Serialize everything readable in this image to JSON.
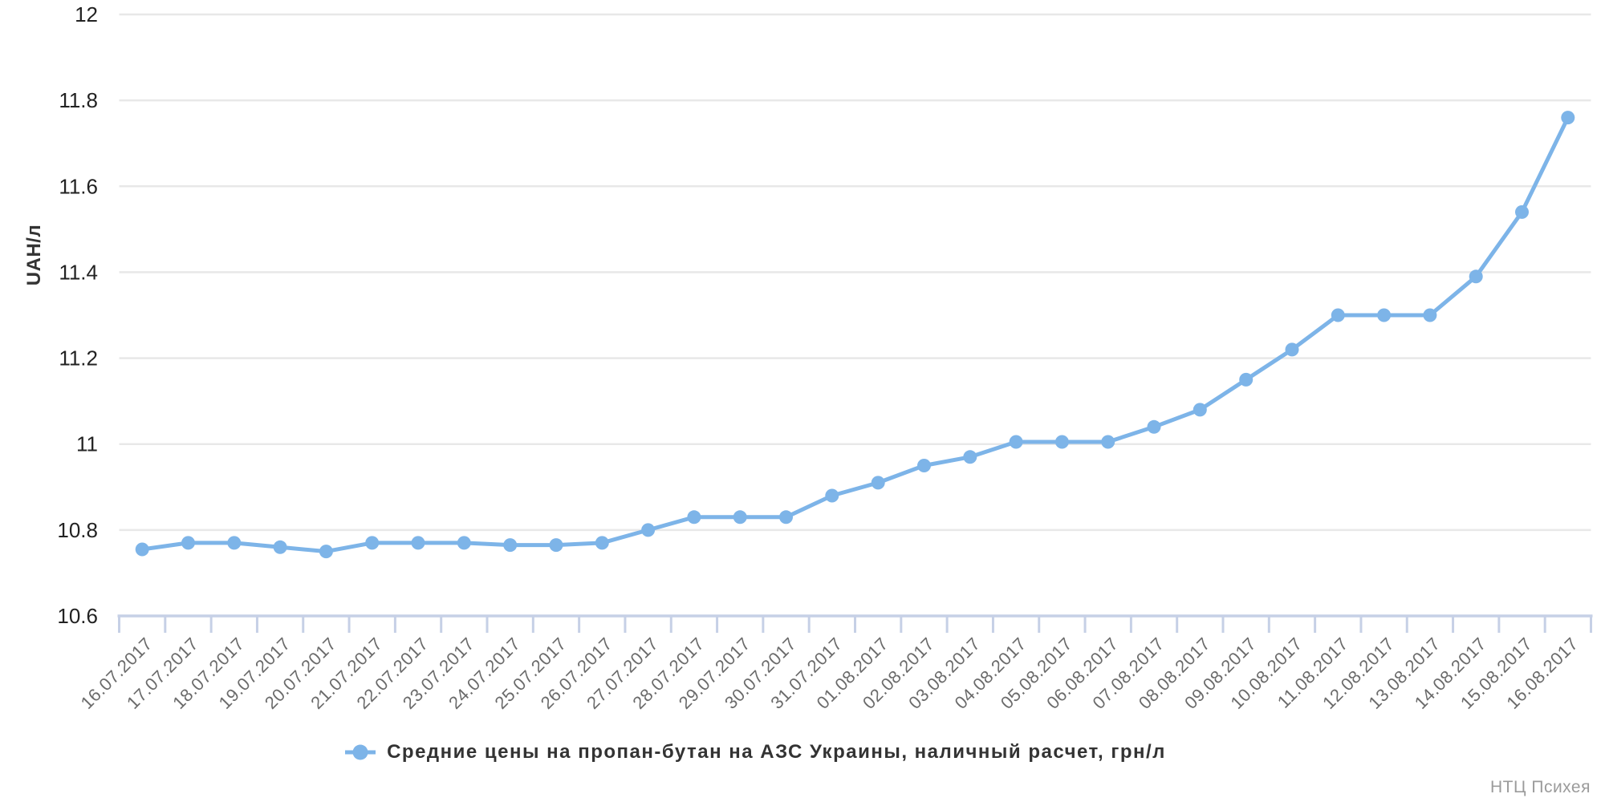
{
  "chart_data": {
    "type": "line",
    "x": [
      "16.07.2017",
      "17.07.2017",
      "18.07.2017",
      "19.07.2017",
      "20.07.2017",
      "21.07.2017",
      "22.07.2017",
      "23.07.2017",
      "24.07.2017",
      "25.07.2017",
      "26.07.2017",
      "27.07.2017",
      "28.07.2017",
      "29.07.2017",
      "30.07.2017",
      "31.07.2017",
      "01.08.2017",
      "02.08.2017",
      "03.08.2017",
      "04.08.2017",
      "05.08.2017",
      "06.08.2017",
      "07.08.2017",
      "08.08.2017",
      "09.08.2017",
      "10.08.2017",
      "11.08.2017",
      "12.08.2017",
      "13.08.2017",
      "14.08.2017",
      "15.08.2017",
      "16.08.2017"
    ],
    "series": [
      {
        "name": "Средние цены на пропан-бутан на АЗС Украины, наличный расчет, грн/л",
        "values": [
          10.755,
          10.77,
          10.77,
          10.76,
          10.75,
          10.77,
          10.77,
          10.77,
          10.765,
          10.765,
          10.77,
          10.8,
          10.83,
          10.83,
          10.83,
          10.88,
          10.91,
          10.95,
          10.97,
          11.005,
          11.005,
          11.005,
          11.04,
          11.08,
          11.15,
          11.22,
          11.3,
          11.3,
          11.3,
          11.39,
          11.54,
          11.76
        ]
      }
    ],
    "title": "",
    "xlabel": "",
    "ylabel": "UAH/л",
    "ylim": [
      10.6,
      12
    ],
    "yticks": [
      10.6,
      10.8,
      11,
      11.2,
      11.4,
      11.6,
      11.8,
      12
    ],
    "grid": "horizontal-only",
    "legend_position": "bottom",
    "marker": "circle"
  },
  "legend": {
    "marker_icon": "line-with-circle-marker"
  },
  "watermark": "НТЦ Психея",
  "colors": {
    "line": "#7db4e8",
    "axis": "#c6d0e6",
    "grid": "#e8e8e8",
    "y_tick_label": "#222222",
    "x_tick_label": "#6b6b6b",
    "axis_title": "#333333",
    "legend_text": "#333333",
    "watermark": "#9b9b9b"
  }
}
